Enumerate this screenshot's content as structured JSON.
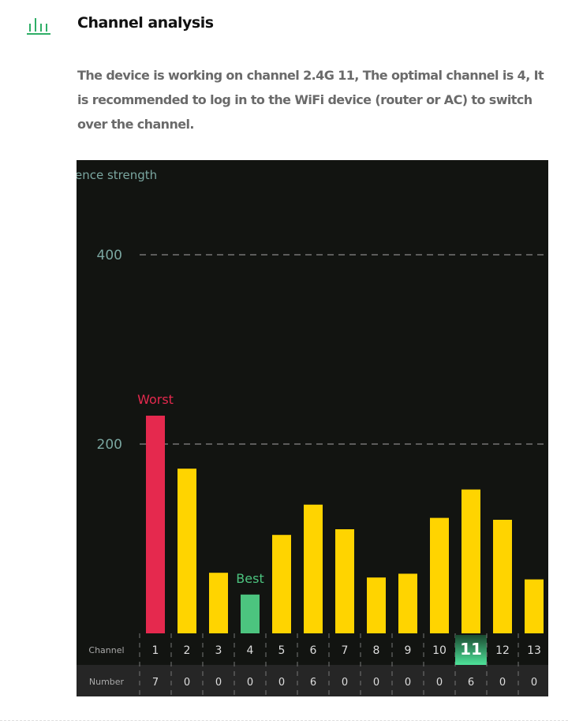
{
  "header": {
    "title": "Channel analysis",
    "icon": "bar-chart-icon"
  },
  "description": "The device is working on channel 2.4G 11, The optimal channel is 4, It is recommended to log in to the WiFi device (router or AC) to switch over the channel.",
  "chart_data": {
    "type": "bar",
    "ylabel": "ence strength",
    "ylim": [
      0,
      450
    ],
    "yticks": [
      200,
      400
    ],
    "grid": true,
    "categories": [
      "1",
      "2",
      "3",
      "4",
      "5",
      "6",
      "7",
      "8",
      "9",
      "10",
      "11",
      "12",
      "13"
    ],
    "values": [
      230,
      174,
      64,
      41,
      104,
      136,
      110,
      59,
      63,
      122,
      152,
      120,
      57
    ],
    "numbers": [
      "7",
      "0",
      "0",
      "0",
      "0",
      "6",
      "0",
      "0",
      "0",
      "0",
      "6",
      "0",
      "0"
    ],
    "row_labels": {
      "channel": "Channel",
      "number": "Number"
    },
    "annotations": {
      "worst": {
        "label": "Worst",
        "channel": "1"
      },
      "best": {
        "label": "Best",
        "channel": "4"
      },
      "current": "11"
    },
    "colors": {
      "worst": "#e5294e",
      "best": "#4cc47f",
      "normal": "#ffd400",
      "axis": "#7aa6a0",
      "background": "#121411"
    }
  }
}
